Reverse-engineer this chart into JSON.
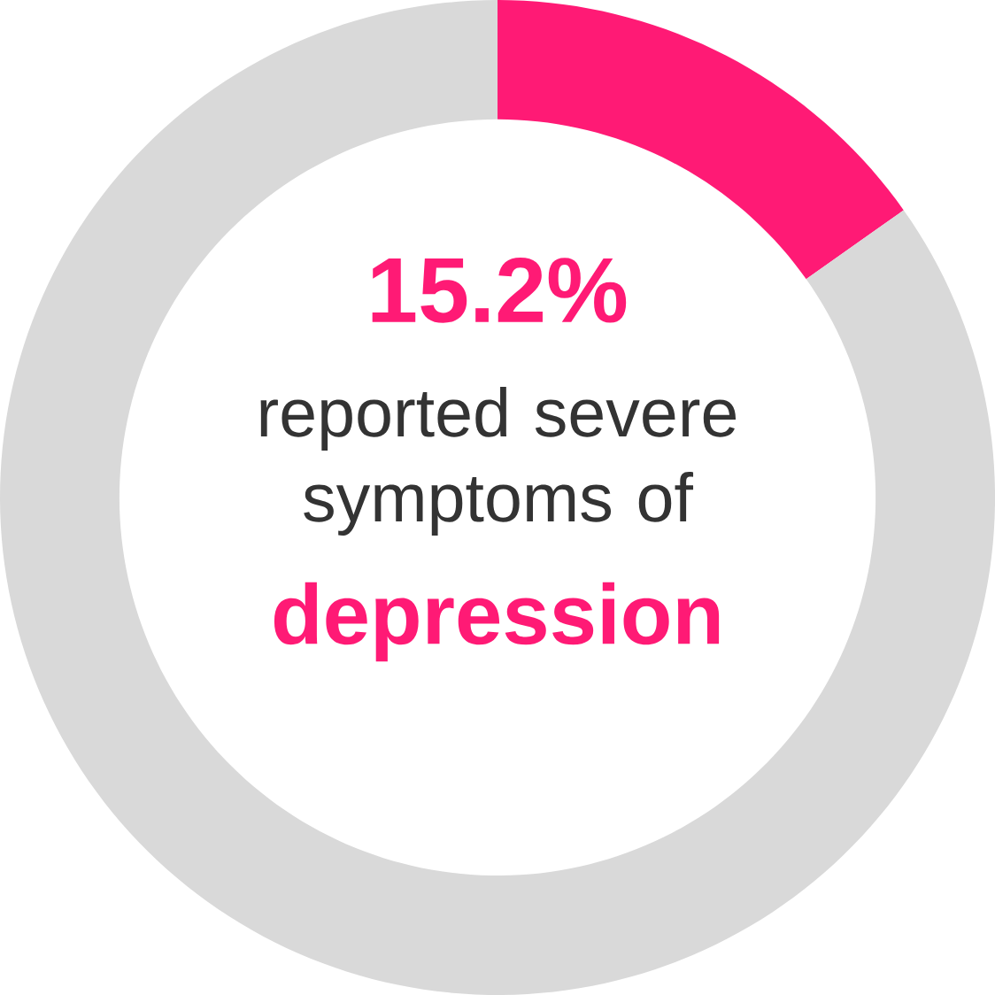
{
  "chart_data": {
    "type": "donut",
    "categories": [
      null,
      null
    ],
    "values": [
      15.2,
      84.8
    ],
    "colors": [
      "#ff1a75",
      "#d9d9d9"
    ],
    "value_labels": [
      "15.2%",
      null
    ],
    "annotations": [
      "reported severe symptoms of",
      "depression"
    ]
  }
}
